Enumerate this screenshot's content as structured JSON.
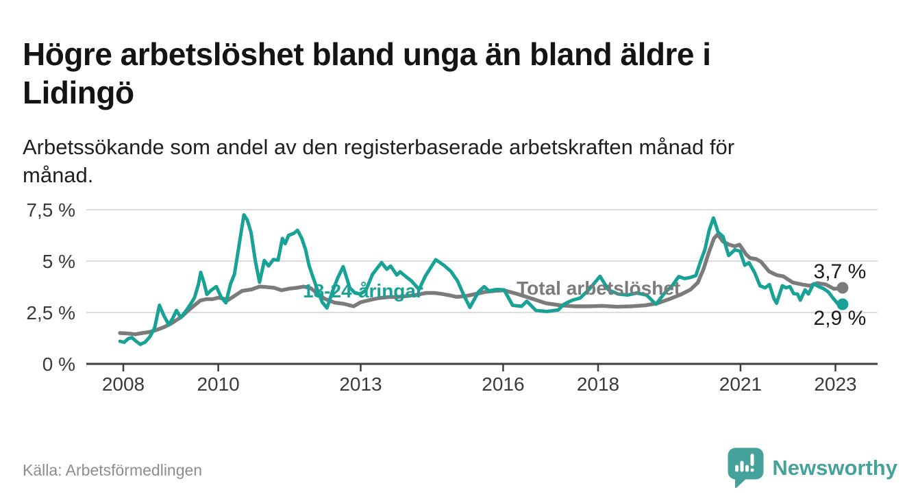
{
  "header": {
    "title_lines": "Högre arbetslöshet bland unga än bland äldre i\nLidingö",
    "subtitle_lines": "Arbetssökande som andel av den registerbaserade arbetskraften månad för\nmånad."
  },
  "footer": {
    "source": "Källa: Arbetsförmedlingen",
    "brand": "Newsworthy"
  },
  "colors": {
    "youth_line": "#18a296",
    "total_line": "#7b7b7b",
    "axis": "#3d3d3d",
    "grid": "#dcdcdc",
    "tick_text": "#3a3a3a",
    "value_text": "#1a1a1a",
    "brand_teal": "#45a29b"
  },
  "chart_data": {
    "type": "line",
    "title": "Högre arbetslöshet bland unga än bland äldre i Lidingö",
    "subtitle": "Arbetssökande som andel av den registerbaserade arbetskraften månad för månad.",
    "source": "Källa: Arbetsförmedlingen",
    "xlim": [
      2007.9,
      2023.9
    ],
    "ylim": [
      0,
      7.8
    ],
    "grid": "horizontal",
    "legend": "inline-labels",
    "y_ticks": [
      {
        "value": 0,
        "label": "0 %"
      },
      {
        "value": 2.5,
        "label": "2,5 %"
      },
      {
        "value": 5,
        "label": "5 %"
      },
      {
        "value": 7.5,
        "label": "7,5 %"
      }
    ],
    "x_ticks": [
      {
        "value": 2008,
        "label": "2008"
      },
      {
        "value": 2010,
        "label": "2010"
      },
      {
        "value": 2013,
        "label": "2013"
      },
      {
        "value": 2016,
        "label": "2016"
      },
      {
        "value": 2018,
        "label": "2018"
      },
      {
        "value": 2021,
        "label": "2021"
      },
      {
        "value": 2023,
        "label": "2023"
      }
    ],
    "annotations": [
      {
        "text": "18-24-åringar",
        "x": 2013.05,
        "y": 3.57,
        "color": "#18a296"
      },
      {
        "text": "Total arbetslöshet",
        "x": 2018.01,
        "y": 3.7,
        "color": "#7b7b7b"
      }
    ],
    "series": [
      {
        "name": "18-24-åringar",
        "color": "#18a296",
        "width": 5,
        "end_label": "2,9 %",
        "end_label_side": "below",
        "points": [
          [
            2007.93,
            1.1
          ],
          [
            2008.02,
            1.05
          ],
          [
            2008.1,
            1.22
          ],
          [
            2008.18,
            1.28
          ],
          [
            2008.27,
            1.1
          ],
          [
            2008.36,
            0.95
          ],
          [
            2008.46,
            1.06
          ],
          [
            2008.56,
            1.32
          ],
          [
            2008.66,
            1.75
          ],
          [
            2008.76,
            2.85
          ],
          [
            2008.86,
            2.32
          ],
          [
            2008.96,
            1.9
          ],
          [
            2009.04,
            2.22
          ],
          [
            2009.12,
            2.6
          ],
          [
            2009.21,
            2.25
          ],
          [
            2009.31,
            2.55
          ],
          [
            2009.41,
            2.88
          ],
          [
            2009.5,
            3.22
          ],
          [
            2009.58,
            3.85
          ],
          [
            2009.63,
            4.45
          ],
          [
            2009.7,
            3.95
          ],
          [
            2009.76,
            3.38
          ],
          [
            2009.85,
            3.58
          ],
          [
            2009.96,
            3.76
          ],
          [
            2010.06,
            3.25
          ],
          [
            2010.16,
            2.97
          ],
          [
            2010.26,
            3.9
          ],
          [
            2010.34,
            4.36
          ],
          [
            2010.44,
            5.8
          ],
          [
            2010.54,
            7.25
          ],
          [
            2010.61,
            7.0
          ],
          [
            2010.69,
            6.4
          ],
          [
            2010.78,
            5.0
          ],
          [
            2010.87,
            3.97
          ],
          [
            2010.97,
            5.03
          ],
          [
            2011.06,
            4.76
          ],
          [
            2011.16,
            5.08
          ],
          [
            2011.26,
            5.05
          ],
          [
            2011.35,
            6.1
          ],
          [
            2011.41,
            5.85
          ],
          [
            2011.48,
            6.25
          ],
          [
            2011.59,
            6.35
          ],
          [
            2011.67,
            6.5
          ],
          [
            2011.76,
            6.1
          ],
          [
            2011.84,
            5.55
          ],
          [
            2011.91,
            4.8
          ],
          [
            2011.99,
            4.25
          ],
          [
            2012.09,
            3.6
          ],
          [
            2012.19,
            3.0
          ],
          [
            2012.29,
            2.72
          ],
          [
            2012.41,
            3.55
          ],
          [
            2012.52,
            4.2
          ],
          [
            2012.63,
            4.73
          ],
          [
            2012.77,
            3.7
          ],
          [
            2012.88,
            3.45
          ],
          [
            2012.99,
            3.4
          ],
          [
            2013.11,
            3.58
          ],
          [
            2013.25,
            4.36
          ],
          [
            2013.44,
            4.93
          ],
          [
            2013.55,
            4.6
          ],
          [
            2013.63,
            4.76
          ],
          [
            2013.76,
            4.32
          ],
          [
            2013.83,
            4.48
          ],
          [
            2013.95,
            4.25
          ],
          [
            2014.07,
            4.03
          ],
          [
            2014.23,
            3.62
          ],
          [
            2014.36,
            4.26
          ],
          [
            2014.58,
            5.07
          ],
          [
            2014.75,
            4.8
          ],
          [
            2014.9,
            4.5
          ],
          [
            2015.04,
            4.03
          ],
          [
            2015.18,
            3.3
          ],
          [
            2015.3,
            2.75
          ],
          [
            2015.48,
            3.5
          ],
          [
            2015.6,
            3.76
          ],
          [
            2015.7,
            3.55
          ],
          [
            2015.86,
            3.62
          ],
          [
            2016.02,
            3.6
          ],
          [
            2016.2,
            2.85
          ],
          [
            2016.39,
            2.8
          ],
          [
            2016.5,
            3.05
          ],
          [
            2016.69,
            2.6
          ],
          [
            2016.92,
            2.55
          ],
          [
            2017.16,
            2.62
          ],
          [
            2017.28,
            2.9
          ],
          [
            2017.46,
            3.1
          ],
          [
            2017.62,
            3.2
          ],
          [
            2017.81,
            3.62
          ],
          [
            2018.04,
            4.26
          ],
          [
            2018.22,
            3.6
          ],
          [
            2018.42,
            3.4
          ],
          [
            2018.62,
            3.35
          ],
          [
            2018.82,
            3.45
          ],
          [
            2019.02,
            3.35
          ],
          [
            2019.22,
            2.9
          ],
          [
            2019.42,
            3.5
          ],
          [
            2019.56,
            3.8
          ],
          [
            2019.7,
            4.25
          ],
          [
            2019.82,
            4.15
          ],
          [
            2019.94,
            4.2
          ],
          [
            2020.06,
            4.3
          ],
          [
            2020.16,
            5.0
          ],
          [
            2020.25,
            5.55
          ],
          [
            2020.34,
            6.5
          ],
          [
            2020.43,
            7.1
          ],
          [
            2020.53,
            6.4
          ],
          [
            2020.63,
            6.2
          ],
          [
            2020.75,
            5.27
          ],
          [
            2020.88,
            5.55
          ],
          [
            2020.99,
            5.48
          ],
          [
            2021.09,
            4.8
          ],
          [
            2021.18,
            4.92
          ],
          [
            2021.3,
            4.43
          ],
          [
            2021.41,
            3.8
          ],
          [
            2021.52,
            3.7
          ],
          [
            2021.61,
            3.86
          ],
          [
            2021.7,
            3.2
          ],
          [
            2021.76,
            2.95
          ],
          [
            2021.88,
            3.8
          ],
          [
            2021.96,
            3.7
          ],
          [
            2022.04,
            3.76
          ],
          [
            2022.12,
            3.42
          ],
          [
            2022.2,
            3.4
          ],
          [
            2022.26,
            3.1
          ],
          [
            2022.36,
            3.6
          ],
          [
            2022.43,
            3.4
          ],
          [
            2022.54,
            3.9
          ],
          [
            2022.65,
            3.76
          ],
          [
            2022.75,
            3.66
          ],
          [
            2022.85,
            3.5
          ],
          [
            2022.95,
            3.2
          ],
          [
            2023.05,
            2.92
          ],
          [
            2023.15,
            2.9
          ]
        ]
      },
      {
        "name": "Total arbetslöshet",
        "color": "#7b7b7b",
        "width": 5.5,
        "end_label": "3,7 %",
        "end_label_side": "above",
        "points": [
          [
            2007.93,
            1.5
          ],
          [
            2008.1,
            1.48
          ],
          [
            2008.25,
            1.44
          ],
          [
            2008.4,
            1.5
          ],
          [
            2008.55,
            1.55
          ],
          [
            2008.7,
            1.65
          ],
          [
            2008.85,
            1.78
          ],
          [
            2009.0,
            1.95
          ],
          [
            2009.1,
            2.1
          ],
          [
            2009.22,
            2.28
          ],
          [
            2009.36,
            2.58
          ],
          [
            2009.5,
            2.85
          ],
          [
            2009.62,
            3.08
          ],
          [
            2009.75,
            3.15
          ],
          [
            2009.88,
            3.15
          ],
          [
            2010.0,
            3.22
          ],
          [
            2010.1,
            3.18
          ],
          [
            2010.2,
            3.1
          ],
          [
            2010.35,
            3.32
          ],
          [
            2010.5,
            3.55
          ],
          [
            2010.7,
            3.62
          ],
          [
            2010.87,
            3.76
          ],
          [
            2011.0,
            3.74
          ],
          [
            2011.18,
            3.7
          ],
          [
            2011.33,
            3.58
          ],
          [
            2011.5,
            3.66
          ],
          [
            2011.65,
            3.7
          ],
          [
            2011.8,
            3.76
          ],
          [
            2011.95,
            3.68
          ],
          [
            2012.1,
            3.4
          ],
          [
            2012.25,
            3.16
          ],
          [
            2012.45,
            2.98
          ],
          [
            2012.65,
            2.92
          ],
          [
            2012.85,
            2.8
          ],
          [
            2013.0,
            3.0
          ],
          [
            2013.18,
            3.1
          ],
          [
            2013.38,
            3.2
          ],
          [
            2013.58,
            3.25
          ],
          [
            2013.78,
            3.26
          ],
          [
            2013.98,
            3.3
          ],
          [
            2014.18,
            3.36
          ],
          [
            2014.38,
            3.45
          ],
          [
            2014.55,
            3.45
          ],
          [
            2014.72,
            3.4
          ],
          [
            2014.88,
            3.33
          ],
          [
            2015.02,
            3.26
          ],
          [
            2015.22,
            3.3
          ],
          [
            2015.42,
            3.4
          ],
          [
            2015.62,
            3.5
          ],
          [
            2015.82,
            3.55
          ],
          [
            2016.02,
            3.58
          ],
          [
            2016.3,
            3.4
          ],
          [
            2016.6,
            3.18
          ],
          [
            2016.9,
            2.95
          ],
          [
            2017.2,
            2.85
          ],
          [
            2017.5,
            2.8
          ],
          [
            2017.8,
            2.8
          ],
          [
            2018.1,
            2.82
          ],
          [
            2018.4,
            2.78
          ],
          [
            2018.7,
            2.8
          ],
          [
            2019.0,
            2.85
          ],
          [
            2019.25,
            2.95
          ],
          [
            2019.5,
            3.15
          ],
          [
            2019.75,
            3.38
          ],
          [
            2019.95,
            3.62
          ],
          [
            2020.1,
            3.95
          ],
          [
            2020.22,
            4.6
          ],
          [
            2020.33,
            5.4
          ],
          [
            2020.44,
            6.1
          ],
          [
            2020.52,
            6.3
          ],
          [
            2020.63,
            5.95
          ],
          [
            2020.76,
            5.8
          ],
          [
            2020.88,
            5.72
          ],
          [
            2020.98,
            5.8
          ],
          [
            2021.12,
            5.32
          ],
          [
            2021.2,
            5.15
          ],
          [
            2021.33,
            5.1
          ],
          [
            2021.43,
            4.97
          ],
          [
            2021.6,
            4.5
          ],
          [
            2021.76,
            4.32
          ],
          [
            2021.9,
            4.26
          ],
          [
            2022.1,
            3.96
          ],
          [
            2022.3,
            3.86
          ],
          [
            2022.46,
            3.8
          ],
          [
            2022.62,
            3.93
          ],
          [
            2022.8,
            3.86
          ],
          [
            2022.97,
            3.65
          ],
          [
            2023.15,
            3.7
          ]
        ]
      }
    ]
  }
}
